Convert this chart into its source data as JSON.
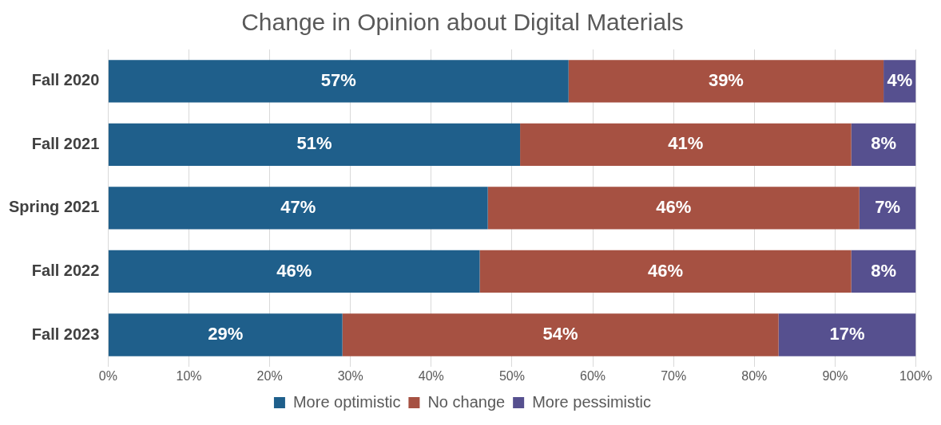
{
  "chart_data": {
    "type": "bar",
    "title": "Change in Opinion about Digital Materials",
    "orientation": "horizontal",
    "stacked": true,
    "categories": [
      "Fall 2020",
      "Fall 2021",
      "Spring 2021",
      "Fall 2022",
      "Fall 2023"
    ],
    "series": [
      {
        "name": "More optimistic",
        "color": "#1f5f8b",
        "values": [
          57,
          51,
          47,
          46,
          29
        ],
        "value_labels": [
          "57%",
          "51%",
          "47%",
          "46%",
          "29%"
        ]
      },
      {
        "name": "No change",
        "color": "#a65142",
        "values": [
          39,
          41,
          46,
          46,
          54
        ],
        "value_labels": [
          "39%",
          "41%",
          "46%",
          "46%",
          "54%"
        ]
      },
      {
        "name": "More pessimistic",
        "color": "#56508f",
        "values": [
          4,
          8,
          7,
          8,
          17
        ],
        "value_labels": [
          "4%",
          "8%",
          "7%",
          "8%",
          "17%"
        ]
      }
    ],
    "xlim": [
      0,
      100
    ],
    "xticks": [
      {
        "value": 0,
        "label": "0%"
      },
      {
        "value": 10,
        "label": "10%"
      },
      {
        "value": 20,
        "label": "20%"
      },
      {
        "value": 30,
        "label": "30%"
      },
      {
        "value": 40,
        "label": "40%"
      },
      {
        "value": 50,
        "label": "50%"
      },
      {
        "value": 60,
        "label": "60%"
      },
      {
        "value": 70,
        "label": "70%"
      },
      {
        "value": 80,
        "label": "80%"
      },
      {
        "value": 90,
        "label": "90%"
      },
      {
        "value": 100,
        "label": "100%"
      }
    ],
    "grid": "x",
    "legend": "bottom"
  }
}
